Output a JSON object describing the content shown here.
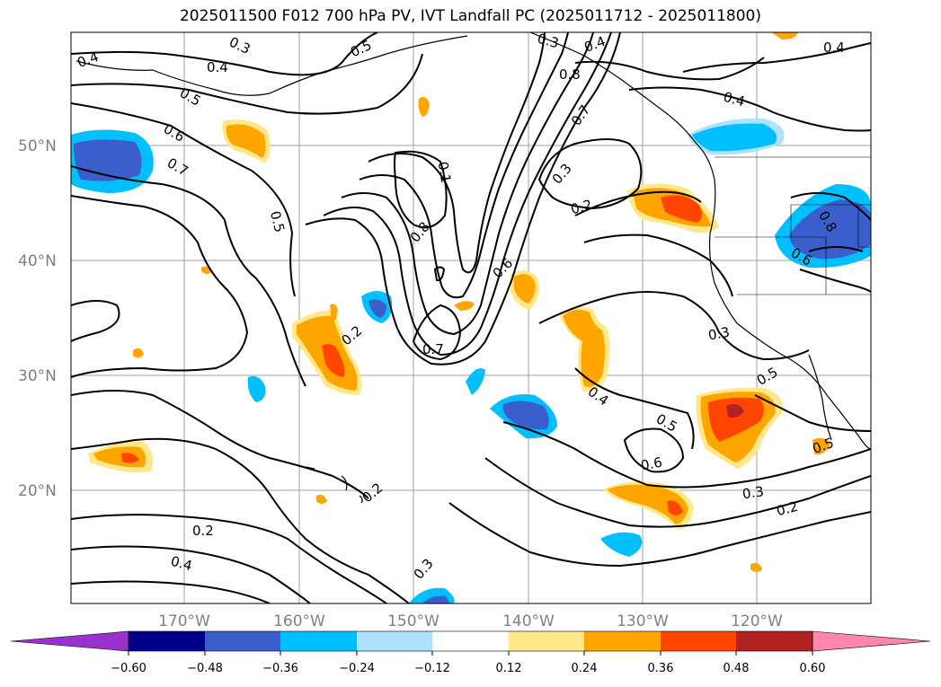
{
  "title": "2025011500 F012 700 hPa PV, IVT Landfall PC (2025011712 - 2025011800)",
  "lat_labels": [
    "50°N",
    "40°N",
    "30°N",
    "20°N"
  ],
  "lon_labels": [
    "170°W",
    "160°W",
    "150°W",
    "140°W",
    "130°W",
    "120°W"
  ],
  "colorbar": {
    "ticks": [
      "−0.60",
      "−0.48",
      "−0.36",
      "−0.24",
      "−0.12",
      "0.12",
      "0.24",
      "0.36",
      "0.48",
      "0.60"
    ],
    "colors": [
      "#9932cc",
      "#00008b",
      "#3a5fcd",
      "#00bfff",
      "#b0e2ff",
      "#ffffff",
      "#ffe88a",
      "#ffa500",
      "#ff4500",
      "#b22222",
      "#ff88aa"
    ]
  },
  "contour_labels": [
    "0.4",
    "0.3",
    "0.5",
    "0.4",
    "0.3",
    "0.4",
    "0.8",
    "0.4",
    "0.4",
    "0.5",
    "0.6",
    "0.7",
    "0.7",
    "0.1",
    "0.3",
    "0.2",
    "0.5",
    "0.8",
    "0.6",
    "0.8",
    "0.6",
    "0.2",
    "0.7",
    "0.3",
    "0.5",
    "0.4",
    "0.5",
    "0.6",
    "0.5",
    "0.2",
    "0.3",
    "0.2",
    "0.2",
    "0.4",
    "0.3"
  ],
  "colors": {
    "contour": "#000000",
    "grid": "#a0a0a0",
    "tick_label": "#808080"
  }
}
